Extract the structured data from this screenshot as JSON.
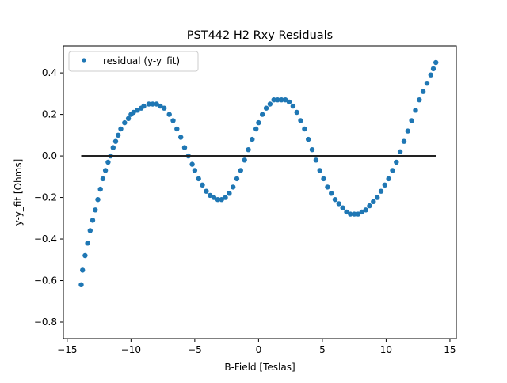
{
  "chart_data": {
    "type": "scatter",
    "title": "PST442 H2 Rxy Residuals",
    "xlabel": "B-Field [Teslas]",
    "ylabel": "y-y_fit [Ohms]",
    "xlim": [
      -15.3,
      15.5
    ],
    "ylim": [
      -0.88,
      0.53
    ],
    "xticks": [
      -15,
      -10,
      -5,
      0,
      5,
      10,
      15
    ],
    "xtick_labels": [
      "−15",
      "−10",
      "−5",
      "0",
      "5",
      "10",
      "15"
    ],
    "yticks": [
      -0.8,
      -0.6,
      -0.4,
      -0.2,
      0.0,
      0.2,
      0.4
    ],
    "ytick_labels": [
      "−0.8",
      "−0.6",
      "−0.4",
      "−0.2",
      "0.0",
      "0.2",
      "0.4"
    ],
    "grid": false,
    "legend_position": "top-left",
    "series": [
      {
        "name": "residual (y-y_fit)",
        "kind": "scatter",
        "color": "#1f77b4",
        "x": [
          -13.9,
          -13.8,
          -13.6,
          -13.4,
          -13.2,
          -13.0,
          -12.8,
          -12.6,
          -12.4,
          -12.2,
          -12.0,
          -11.8,
          -11.6,
          -11.4,
          -11.2,
          -11.0,
          -10.8,
          -10.5,
          -10.2,
          -10.0,
          -9.8,
          -9.5,
          -9.2,
          -9.0,
          -8.6,
          -8.3,
          -8.0,
          -7.7,
          -7.4,
          -7.0,
          -6.7,
          -6.4,
          -6.1,
          -5.8,
          -5.5,
          -5.2,
          -5.0,
          -4.7,
          -4.4,
          -4.1,
          -3.8,
          -3.5,
          -3.2,
          -2.9,
          -2.6,
          -2.3,
          -2.0,
          -1.7,
          -1.4,
          -1.1,
          -0.8,
          -0.5,
          -0.2,
          0.0,
          0.3,
          0.6,
          0.9,
          1.2,
          1.5,
          1.8,
          2.1,
          2.4,
          2.7,
          3.0,
          3.3,
          3.6,
          3.9,
          4.2,
          4.5,
          4.8,
          5.1,
          5.4,
          5.7,
          6.0,
          6.3,
          6.6,
          6.9,
          7.2,
          7.5,
          7.8,
          8.1,
          8.4,
          8.7,
          9.0,
          9.3,
          9.6,
          9.9,
          10.2,
          10.5,
          10.8,
          11.1,
          11.4,
          11.7,
          12.0,
          12.3,
          12.6,
          12.9,
          13.2,
          13.5,
          13.7,
          13.9
        ],
        "y": [
          -0.62,
          -0.55,
          -0.48,
          -0.42,
          -0.36,
          -0.31,
          -0.26,
          -0.21,
          -0.16,
          -0.11,
          -0.07,
          -0.03,
          0.0,
          0.04,
          0.07,
          0.1,
          0.13,
          0.16,
          0.18,
          0.2,
          0.21,
          0.22,
          0.23,
          0.24,
          0.25,
          0.25,
          0.25,
          0.24,
          0.23,
          0.2,
          0.17,
          0.13,
          0.09,
          0.04,
          0.0,
          -0.04,
          -0.07,
          -0.11,
          -0.14,
          -0.17,
          -0.19,
          -0.2,
          -0.21,
          -0.21,
          -0.2,
          -0.18,
          -0.15,
          -0.11,
          -0.07,
          -0.02,
          0.03,
          0.08,
          0.13,
          0.16,
          0.2,
          0.23,
          0.25,
          0.27,
          0.27,
          0.27,
          0.27,
          0.26,
          0.24,
          0.21,
          0.17,
          0.13,
          0.08,
          0.03,
          -0.02,
          -0.07,
          -0.11,
          -0.15,
          -0.18,
          -0.21,
          -0.23,
          -0.25,
          -0.27,
          -0.28,
          -0.28,
          -0.28,
          -0.27,
          -0.26,
          -0.24,
          -0.22,
          -0.2,
          -0.17,
          -0.14,
          -0.11,
          -0.07,
          -0.03,
          0.02,
          0.07,
          0.12,
          0.17,
          0.22,
          0.27,
          0.31,
          0.35,
          0.39,
          0.42,
          0.45
        ]
      },
      {
        "name": "",
        "kind": "line",
        "color": "#222222",
        "x": [
          -13.9,
          13.9
        ],
        "y": [
          0.0,
          0.0
        ]
      }
    ]
  }
}
